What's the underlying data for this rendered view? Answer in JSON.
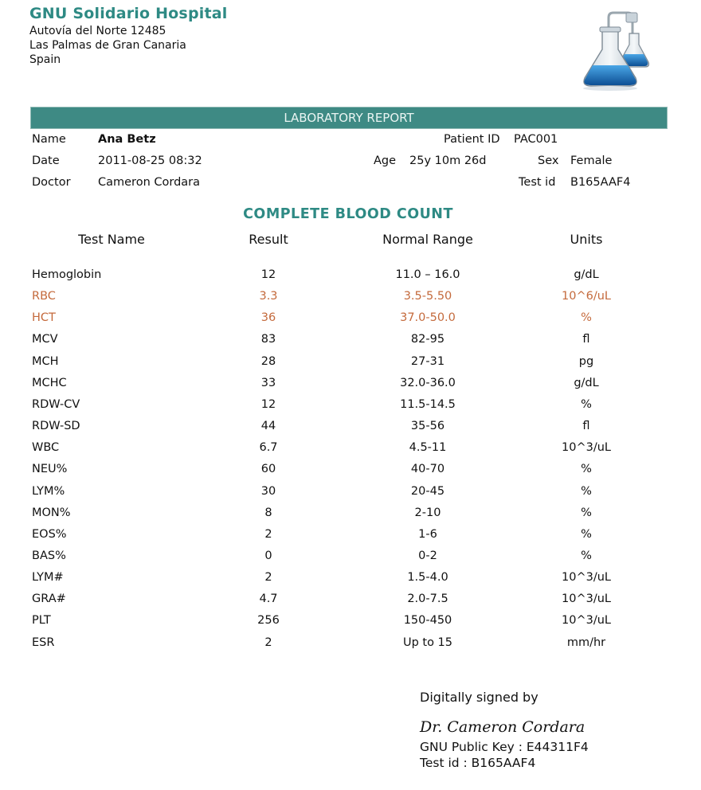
{
  "hospital": {
    "name": "GNU Solidario Hospital",
    "address_line1": "Autovía del Norte 12485",
    "address_line2": "Las Palmas de Gran Canaria",
    "address_line3": "Spain"
  },
  "logo_icon": "laboratory-flasks-icon",
  "report_title": "LABORATORY REPORT",
  "patient": {
    "name_label": "Name",
    "name": "Ana Betz",
    "patient_id_label": "Patient ID",
    "patient_id": "PAC001",
    "date_label": "Date",
    "date": "2011-08-25 08:32",
    "age_label": "Age",
    "age": "25y 10m 26d",
    "sex_label": "Sex",
    "sex": "Female",
    "doctor_label": "Doctor",
    "doctor": "Cameron Cordara",
    "test_id_label": "Test id",
    "test_id": "B165AAF4"
  },
  "section_title": "COMPLETE BLOOD COUNT",
  "columns": {
    "name": "Test Name",
    "result": "Result",
    "range": "Normal Range",
    "units": "Units"
  },
  "flag_color": "#c46a3c",
  "rows": [
    {
      "name": "Hemoglobin",
      "result": "12",
      "range": "11.0 – 16.0",
      "units": "g/dL",
      "flag": false
    },
    {
      "name": "RBC",
      "result": "3.3",
      "range": "3.5-5.50",
      "units": "10^6/uL",
      "flag": true
    },
    {
      "name": "HCT",
      "result": "36",
      "range": "37.0-50.0",
      "units": "%",
      "flag": true
    },
    {
      "name": "MCV",
      "result": "83",
      "range": "82-95",
      "units": "fl",
      "flag": false
    },
    {
      "name": "MCH",
      "result": "28",
      "range": "27-31",
      "units": "pg",
      "flag": false
    },
    {
      "name": "MCHC",
      "result": "33",
      "range": "32.0-36.0",
      "units": "g/dL",
      "flag": false
    },
    {
      "name": "RDW-CV",
      "result": "12",
      "range": "11.5-14.5",
      "units": "%",
      "flag": false
    },
    {
      "name": "RDW-SD",
      "result": "44",
      "range": "35-56",
      "units": "fl",
      "flag": false
    },
    {
      "name": "WBC",
      "result": "6.7",
      "range": "4.5-11",
      "units": "10^3/uL",
      "flag": false
    },
    {
      "name": "NEU%",
      "result": "60",
      "range": "40-70",
      "units": "%",
      "flag": false
    },
    {
      "name": "LYM%",
      "result": "30",
      "range": "20-45",
      "units": "%",
      "flag": false
    },
    {
      "name": "MON%",
      "result": "8",
      "range": "2-10",
      "units": "%",
      "flag": false
    },
    {
      "name": "EOS%",
      "result": "2",
      "range": "1-6",
      "units": "%",
      "flag": false
    },
    {
      "name": "BAS%",
      "result": "0",
      "range": "0-2",
      "units": "%",
      "flag": false
    },
    {
      "name": "LYM#",
      "result": "2",
      "range": "1.5-4.0",
      "units": "10^3/uL",
      "flag": false
    },
    {
      "name": "GRA#",
      "result": "4.7",
      "range": "2.0-7.5",
      "units": "10^3/uL",
      "flag": false
    },
    {
      "name": "PLT",
      "result": "256",
      "range": "150-450",
      "units": "10^3/uL",
      "flag": false
    },
    {
      "name": "ESR",
      "result": "2",
      "range": "Up to 15",
      "units": "mm/hr",
      "flag": false
    }
  ],
  "signature": {
    "label": "Digitally signed by",
    "name": "Dr. Cameron Cordara",
    "public_key": "GNU Public Key : E44311F4",
    "test_id": "Test id : B165AAF4"
  }
}
